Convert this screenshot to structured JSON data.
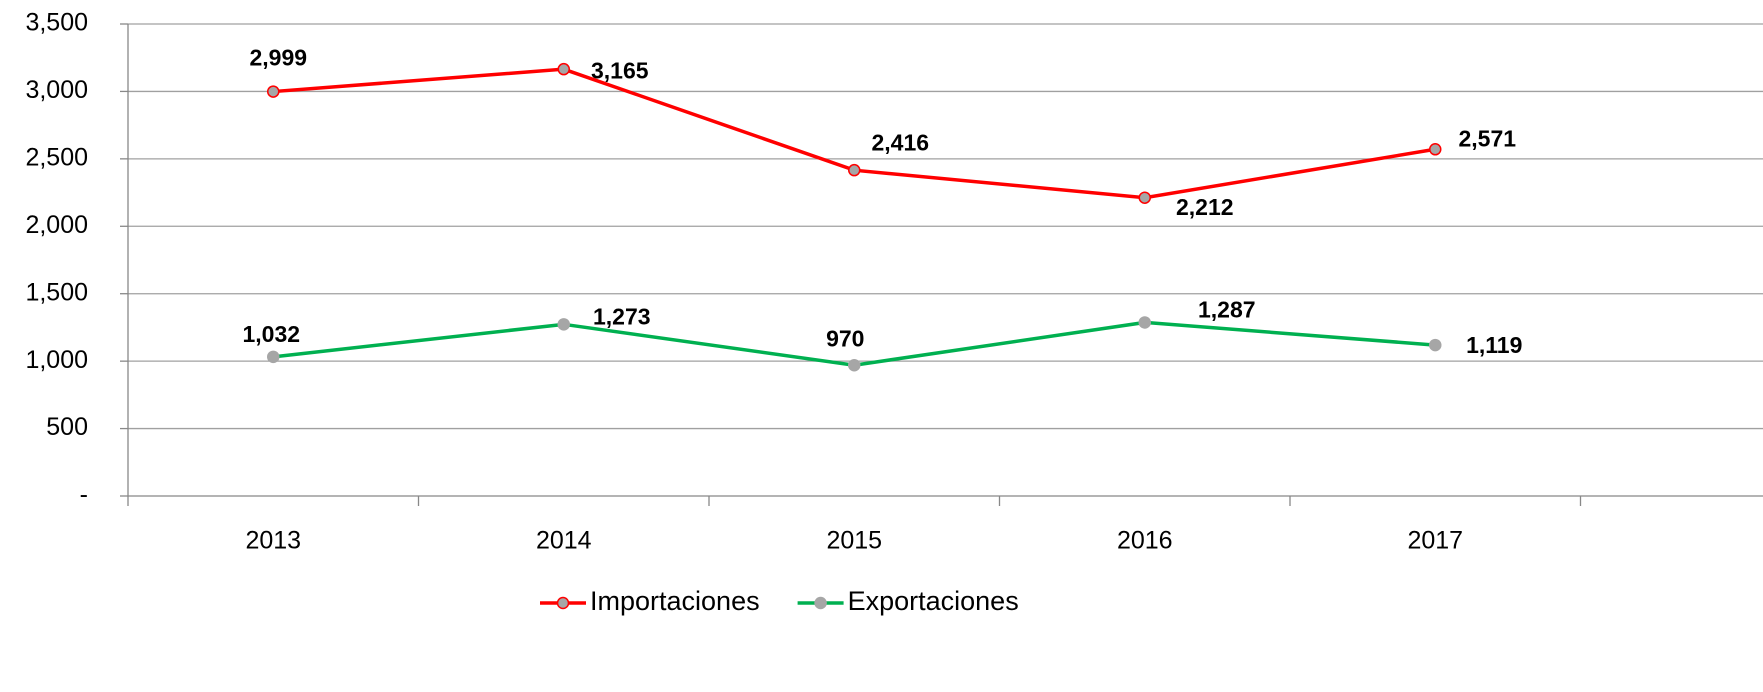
{
  "chart_data": {
    "type": "line",
    "categories": [
      "2013",
      "2014",
      "2015",
      "2016",
      "2017"
    ],
    "series": [
      {
        "name": "Importaciones",
        "color": "#ff0000",
        "marker_color": "#a6a6a6",
        "values": [
          2999,
          3165,
          2416,
          2212,
          2571
        ],
        "value_labels": [
          "2,999",
          "3,165",
          "2,416",
          "2,212",
          "2,571"
        ]
      },
      {
        "name": "Exportaciones",
        "color": "#00b050",
        "marker_color": "#a6a6a6",
        "values": [
          1032,
          1273,
          970,
          1287,
          1119
        ],
        "value_labels": [
          "1,032",
          "1,273",
          "970",
          "1,287",
          "1,119"
        ]
      }
    ],
    "ylim": [
      0,
      3500
    ],
    "yticks": [
      {
        "value": 0,
        "label": "-"
      },
      500,
      {
        "value": 1000,
        "label": "1,000"
      },
      {
        "value": 1500,
        "label": "1,500"
      },
      {
        "value": 2000,
        "label": "2,000"
      },
      {
        "value": 2500,
        "label": "2,500"
      },
      {
        "value": 3000,
        "label": "3,000"
      },
      {
        "value": 3500,
        "label": "3,500"
      }
    ],
    "grid": true,
    "legend": "bottom"
  }
}
